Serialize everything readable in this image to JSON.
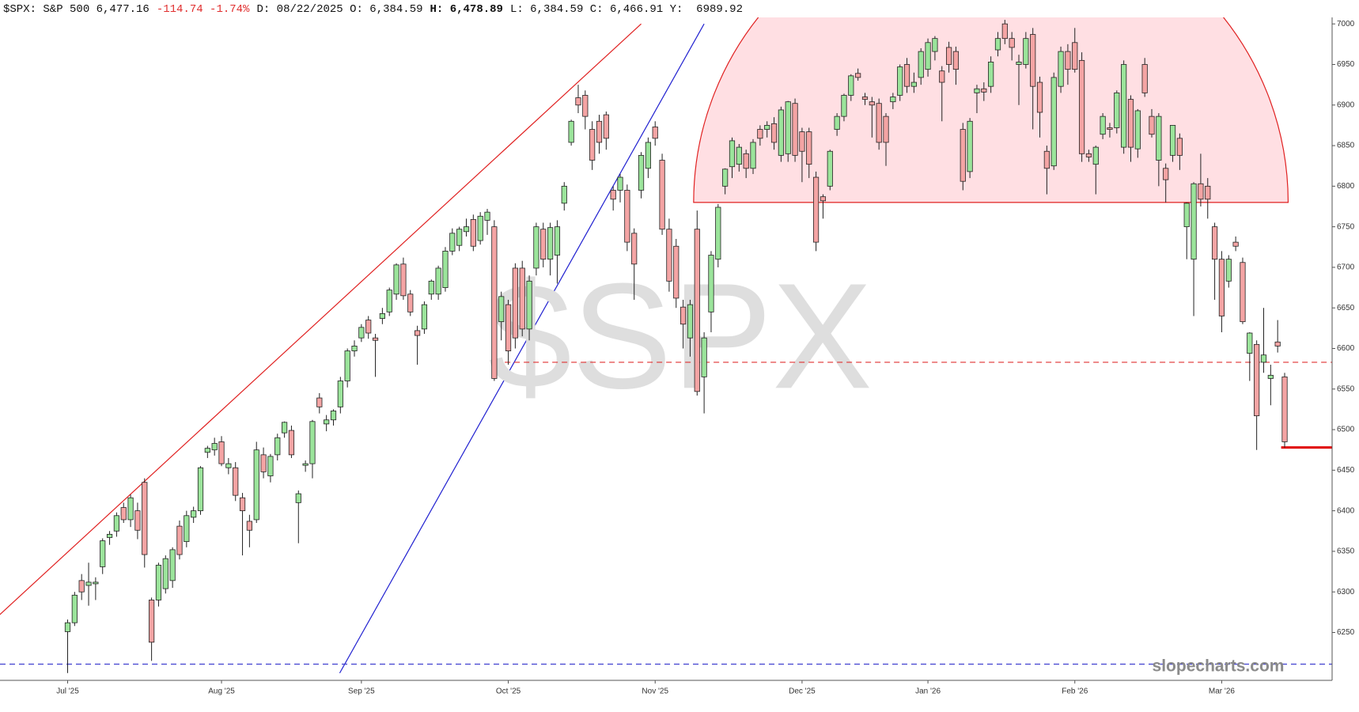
{
  "header": [
    {
      "text": "$SPX: S&P 500 6,477.16"
    },
    {
      "text": "-114.74 -1.74%",
      "color": "#e03030"
    },
    {
      "text": "D: 08/22/2025 O: 6,384.59"
    },
    {
      "text": "H: 6,478.89",
      "bold": true
    },
    {
      "text": "L: 6,384.59 C: 6,466.91 Y:  6989.92"
    }
  ],
  "chart_data": {
    "type": "candlestick",
    "watermark": "$SPX",
    "source": "slopecharts.com",
    "categories": [
      "Jul '25",
      null,
      null,
      null,
      null,
      null,
      null,
      null,
      null,
      null,
      null,
      null,
      null,
      null,
      null,
      null,
      null,
      null,
      null,
      null,
      null,
      null,
      "Aug '25",
      null,
      null,
      null,
      null,
      null,
      null,
      null,
      null,
      null,
      null,
      null,
      null,
      null,
      null,
      null,
      null,
      null,
      null,
      null,
      "Sep '25",
      null,
      null,
      null,
      null,
      null,
      null,
      null,
      null,
      null,
      null,
      null,
      null,
      null,
      null,
      null,
      null,
      null,
      null,
      null,
      null,
      "Oct '25",
      null,
      null,
      null,
      null,
      null,
      null,
      null,
      null,
      null,
      null,
      null,
      null,
      null,
      null,
      null,
      null,
      null,
      null,
      null,
      null,
      "Nov '25",
      null,
      null,
      null,
      null,
      null,
      null,
      null,
      null,
      null,
      null,
      null,
      null,
      null,
      null,
      null,
      null,
      null,
      null,
      null,
      null,
      "Dec '25",
      null,
      null,
      null,
      null,
      null,
      null,
      null,
      null,
      null,
      null,
      null,
      null,
      null,
      null,
      null,
      null,
      null,
      "Jan '26",
      null,
      null,
      null,
      null,
      null,
      null,
      null,
      null,
      null,
      null,
      null,
      null,
      null,
      null,
      null,
      null,
      null,
      null,
      null,
      null,
      "Feb '26",
      null,
      null,
      null,
      null,
      null,
      null,
      null,
      null,
      null,
      null,
      null,
      null,
      null,
      null,
      null,
      null,
      null,
      null,
      null,
      null,
      "Mar '26",
      null,
      null,
      null,
      null,
      null,
      null,
      null,
      null,
      null
    ],
    "open": [
      6251,
      6262,
      6314,
      6308,
      6310,
      6331,
      6367,
      6375,
      6404,
      6389,
      6400,
      6435,
      6290,
      6290,
      6304,
      6314,
      6381,
      6362,
      6392,
      6400,
      6472,
      6475,
      6485,
      6453,
      6453,
      6416,
      6387,
      6389,
      6469,
      6443,
      6469,
      6496,
      6499,
      6410,
      6456,
      6458,
      6539,
      6507,
      6512,
      6528,
      6560,
      6597,
      6613,
      6635,
      6613,
      6637,
      6645,
      6667,
      6704,
      6667,
      6622,
      6624,
      6667,
      6667,
      6675,
      6720,
      6727,
      6744,
      6759,
      6733,
      6758,
      6750,
      6633,
      6654,
      6699,
      6699,
      6624,
      6699,
      6747,
      6710,
      6715,
      6779,
      6854,
      6909,
      6912,
      6870,
      6880,
      6888,
      6795,
      6795,
      6795,
      6742,
      6795,
      6822,
      6873,
      6832,
      6747,
      6726,
      6651,
      6613,
      6747,
      6565,
      6645,
      6710,
      6800,
      6824,
      6827,
      6840,
      6822,
      6870,
      6870,
      6877,
      6838,
      6840,
      6902,
      6867,
      6867,
      6811,
      6787,
      6800,
      6870,
      6886,
      6912,
      6939,
      6910,
      6904,
      6902,
      6886,
      6904,
      6912,
      6950,
      6923,
      6934,
      6944,
      6966,
      6942,
      6971,
      6966,
      6870,
      6818,
      6915,
      6920,
      6923,
      6968,
      7000,
      6982,
      6950,
      6950,
      6987,
      6928,
      6843,
      6825,
      6923,
      6966,
      6977,
      6955,
      6840,
      6827,
      6864,
      6872,
      6872,
      6848,
      6907,
      6846,
      6950,
      6886,
      6832,
      6822,
      6838,
      6859,
      6750,
      6710,
      6803,
      6800,
      6750,
      6710,
      6683,
      6731,
      6706,
      6594,
      6605,
      6583,
      6563,
      6608,
      6565
    ],
    "high": [
      6266,
      6300,
      6322,
      6336,
      6318,
      6366,
      6375,
      6398,
      6410,
      6420,
      6410,
      6440,
      6293,
      6336,
      6345,
      6355,
      6388,
      6400,
      6405,
      6455,
      6480,
      6490,
      6492,
      6465,
      6460,
      6422,
      6395,
      6485,
      6478,
      6470,
      6495,
      6510,
      6505,
      6425,
      6462,
      6512,
      6545,
      6518,
      6525,
      6565,
      6600,
      6610,
      6630,
      6640,
      6618,
      6650,
      6675,
      6705,
      6712,
      6672,
      6628,
      6658,
      6685,
      6702,
      6725,
      6748,
      6750,
      6760,
      6765,
      6768,
      6772,
      6758,
      6670,
      6660,
      6705,
      6708,
      6690,
      6755,
      6755,
      6755,
      6758,
      6805,
      6882,
      6925,
      6918,
      6880,
      6888,
      6892,
      6800,
      6815,
      6802,
      6748,
      6842,
      6860,
      6880,
      6840,
      6760,
      6735,
      6660,
      6660,
      6770,
      6620,
      6720,
      6778,
      6822,
      6860,
      6852,
      6845,
      6858,
      6875,
      6880,
      6885,
      6898,
      6905,
      6908,
      6872,
      6872,
      6818,
      6790,
      6845,
      6890,
      6914,
      6938,
      6945,
      6915,
      6910,
      6908,
      6890,
      6915,
      6950,
      6958,
      6940,
      6970,
      6982,
      6985,
      6948,
      6978,
      6972,
      6878,
      6884,
      6925,
      6928,
      6960,
      6990,
      7005,
      6990,
      6962,
      6990,
      6995,
      6935,
      6850,
      6940,
      6972,
      6975,
      6995,
      6965,
      6845,
      6850,
      6890,
      6878,
      6918,
      6955,
      6912,
      6895,
      6958,
      6895,
      6890,
      6828,
      6875,
      6865,
      6780,
      6805,
      6840,
      6810,
      6755,
      6720,
      6715,
      6738,
      6712,
      6620,
      6610,
      6650,
      6580,
      6635,
      6570
    ],
    "low": [
      6200,
      6258,
      6290,
      6283,
      6290,
      6322,
      6358,
      6368,
      6385,
      6380,
      6365,
      6330,
      6215,
      6282,
      6298,
      6305,
      6340,
      6355,
      6385,
      6395,
      6465,
      6468,
      6455,
      6445,
      6412,
      6345,
      6355,
      6385,
      6440,
      6435,
      6462,
      6490,
      6465,
      6360,
      6448,
      6440,
      6520,
      6498,
      6505,
      6520,
      6552,
      6590,
      6608,
      6612,
      6565,
      6630,
      6640,
      6660,
      6660,
      6640,
      6580,
      6618,
      6660,
      6660,
      6670,
      6715,
      6720,
      6738,
      6720,
      6728,
      6740,
      6560,
      6610,
      6580,
      6600,
      6615,
      6610,
      6690,
      6700,
      6690,
      6680,
      6770,
      6850,
      6890,
      6870,
      6820,
      6840,
      6845,
      6770,
      6780,
      6720,
      6660,
      6785,
      6810,
      6850,
      6740,
      6670,
      6650,
      6600,
      6590,
      6542,
      6520,
      6620,
      6700,
      6790,
      6810,
      6818,
      6810,
      6815,
      6850,
      6860,
      6845,
      6830,
      6830,
      6830,
      6805,
      6810,
      6720,
      6760,
      6795,
      6862,
      6880,
      6905,
      6930,
      6900,
      6860,
      6845,
      6825,
      6895,
      6905,
      6915,
      6915,
      6925,
      6935,
      6955,
      6880,
      6940,
      6925,
      6795,
      6810,
      6890,
      6905,
      6915,
      6960,
      6975,
      6955,
      6900,
      6945,
      6870,
      6860,
      6790,
      6820,
      6915,
      6925,
      6940,
      6830,
      6830,
      6790,
      6858,
      6860,
      6865,
      6840,
      6830,
      6835,
      6910,
      6860,
      6800,
      6780,
      6830,
      6820,
      6710,
      6640,
      6775,
      6760,
      6660,
      6620,
      6675,
      6720,
      6630,
      6560,
      6475,
      6570,
      6530,
      6595,
      6478
    ],
    "close": [
      6262,
      6296,
      6300,
      6312,
      6312,
      6363,
      6371,
      6394,
      6389,
      6416,
      6376,
      6346,
      6238,
      6333,
      6341,
      6352,
      6346,
      6394,
      6400,
      6453,
      6477,
      6483,
      6458,
      6458,
      6419,
      6400,
      6376,
      6475,
      6448,
      6467,
      6490,
      6509,
      6469,
      6421,
      6458,
      6510,
      6528,
      6512,
      6523,
      6560,
      6597,
      6603,
      6626,
      6619,
      6610,
      6643,
      6672,
      6703,
      6665,
      6645,
      6616,
      6654,
      6683,
      6699,
      6720,
      6742,
      6747,
      6750,
      6726,
      6763,
      6768,
      6563,
      6664,
      6597,
      6613,
      6624,
      6683,
      6750,
      6710,
      6749,
      6750,
      6800,
      6880,
      6900,
      6886,
      6832,
      6854,
      6859,
      6784,
      6811,
      6731,
      6704,
      6838,
      6854,
      6859,
      6747,
      6683,
      6662,
      6630,
      6654,
      6547,
      6613,
      6715,
      6774,
      6821,
      6856,
      6848,
      6822,
      6854,
      6859,
      6875,
      6854,
      6894,
      6904,
      6838,
      6843,
      6827,
      6731,
      6782,
      6843,
      6886,
      6912,
      6936,
      6934,
      6907,
      6900,
      6854,
      6854,
      6910,
      6947,
      6923,
      6928,
      6966,
      6977,
      6982,
      6928,
      6950,
      6944,
      6806,
      6880,
      6920,
      6916,
      6953,
      6982,
      6982,
      6971,
      6953,
      6982,
      6923,
      6891,
      6822,
      6934,
      6966,
      6944,
      6944,
      6840,
      6836,
      6848,
      6886,
      6870,
      6915,
      6950,
      6848,
      6893,
      6915,
      6864,
      6886,
      6808,
      6875,
      6838,
      6779,
      6803,
      6784,
      6784,
      6710,
      6640,
      6710,
      6726,
      6633,
      6619,
      6517,
      6592,
      6567,
      6603,
      6485
    ],
    "up_color": "#9be49b",
    "down_color": "#f4a4a4",
    "ylim": [
      6191,
      7008
    ],
    "yticks": [
      6250,
      6300,
      6350,
      6400,
      6450,
      6500,
      6550,
      6600,
      6650,
      6700,
      6750,
      6800,
      6850,
      6900,
      6950,
      7000
    ],
    "hlines": [
      {
        "value": 6583,
        "color": "#e03030",
        "dash": true,
        "from": 63
      },
      {
        "value": 6211,
        "color": "#4040d0",
        "dash": true
      },
      {
        "value": 6478,
        "color": "#e00000",
        "from": 174
      }
    ],
    "trendlines": [
      {
        "x": [
          -9.7,
          82
        ],
        "y": [
          6272,
          7000
        ],
        "color": "#e02020"
      },
      {
        "x": [
          38.9,
          91
        ],
        "y": [
          6200,
          7000
        ],
        "color": "#2020d0"
      }
    ],
    "dome": {
      "base": 6780,
      "from": 89.5,
      "to": 174.5,
      "color": "#e02020",
      "fill": "#ffdfe3"
    }
  }
}
